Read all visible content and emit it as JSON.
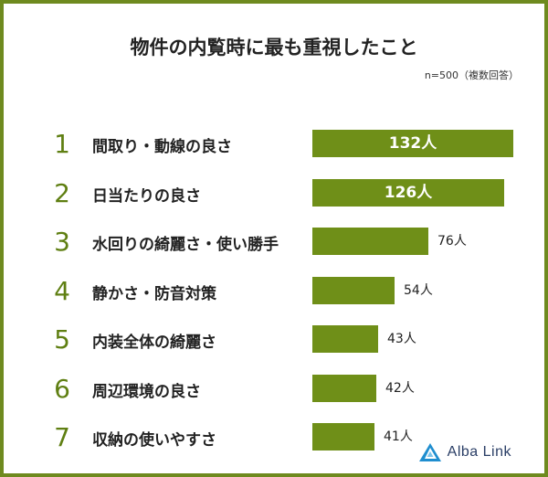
{
  "title": "物件の内覧時に最も重視したこと",
  "note": "n=500（複数回答）",
  "brand": {
    "name": "Alba Link",
    "icon": "triangle-logo-icon",
    "color": "#2a3e66"
  },
  "colors": {
    "bar": "#6f8f18",
    "frame": "#6e8a1f",
    "rank": "#5f7f12"
  },
  "chart_data": {
    "type": "bar",
    "orientation": "horizontal",
    "unit": "人",
    "xlim": [
      0,
      140
    ],
    "grid": false,
    "categories": [
      "間取り・動線の良さ",
      "日当たりの良さ",
      "水回りの綺麗さ・使い勝手",
      "静かさ・防音対策",
      "内装全体の綺麗さ",
      "周辺環境の良さ",
      "収納の使いやすさ"
    ],
    "ranks": [
      "1",
      "2",
      "3",
      "4",
      "5",
      "6",
      "7"
    ],
    "values": [
      132,
      126,
      76,
      54,
      43,
      42,
      41
    ],
    "value_labels": [
      "132人",
      "126人",
      "76人",
      "54人",
      "43人",
      "42人",
      "41人"
    ]
  }
}
